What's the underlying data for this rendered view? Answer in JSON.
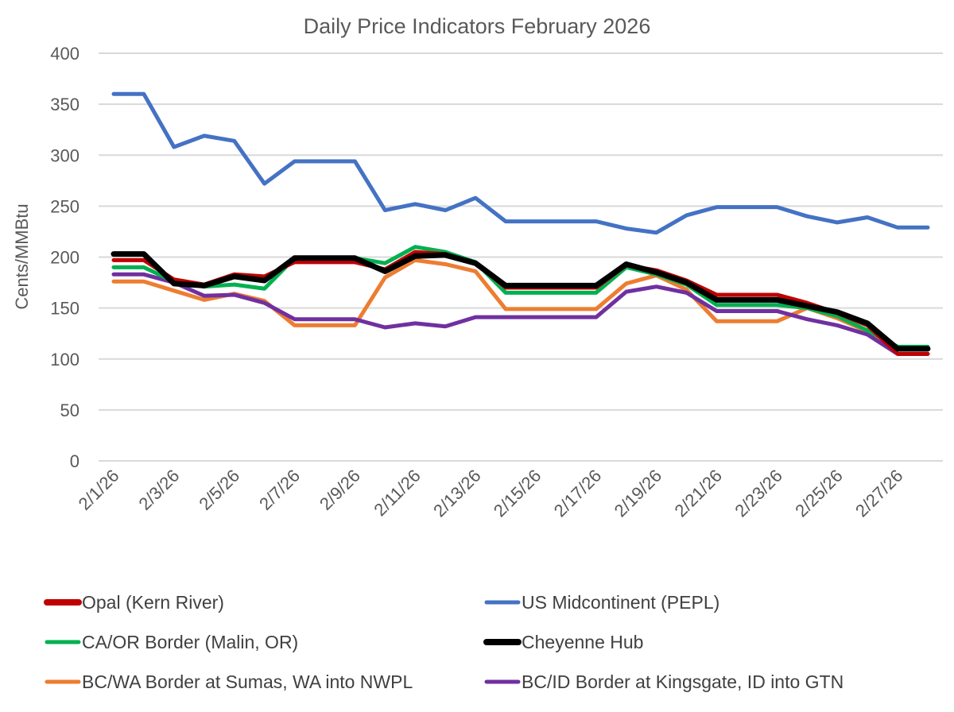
{
  "chart_data": {
    "type": "line",
    "title": "Daily Price Indicators February 2026",
    "xlabel": "",
    "ylabel": "Cents/MMBtu",
    "ylim": [
      0,
      400
    ],
    "yticks": [
      "0",
      "50",
      "100",
      "150",
      "200",
      "250",
      "300",
      "350",
      "400"
    ],
    "grid": true,
    "legend_position": "bottom",
    "x": [
      "2/1/26",
      "2/2/26",
      "2/3/26",
      "2/4/26",
      "2/5/26",
      "2/6/26",
      "2/7/26",
      "2/8/26",
      "2/9/26",
      "2/10/26",
      "2/11/26",
      "2/12/26",
      "2/13/26",
      "2/14/26",
      "2/15/26",
      "2/16/26",
      "2/17/26",
      "2/18/26",
      "2/19/26",
      "2/20/26",
      "2/21/26",
      "2/22/26",
      "2/23/26",
      "2/24/26",
      "2/25/26",
      "2/26/26",
      "2/27/26",
      "2/28/26"
    ],
    "xtick_labels": [
      "2/1/26",
      "2/3/26",
      "2/5/26",
      "2/7/26",
      "2/9/26",
      "2/11/26",
      "2/13/26",
      "2/15/26",
      "2/17/26",
      "2/19/26",
      "2/21/26",
      "2/23/26",
      "2/25/26",
      "2/27/26"
    ],
    "series": [
      {
        "name": "Opal (Kern River)",
        "color": "#C00000",
        "values": [
          197,
          197,
          178,
          173,
          183,
          181,
          195,
          195,
          195,
          188,
          205,
          203,
          194,
          170,
          170,
          170,
          170,
          192,
          187,
          177,
          163,
          163,
          163,
          155,
          145,
          133,
          105,
          105
        ]
      },
      {
        "name": "US Midcontinent (PEPL)",
        "color": "#4472C4",
        "values": [
          360,
          360,
          308,
          319,
          314,
          272,
          294,
          294,
          294,
          246,
          252,
          246,
          258,
          235,
          235,
          235,
          235,
          228,
          224,
          241,
          249,
          249,
          249,
          240,
          234,
          239,
          229,
          229
        ]
      },
      {
        "name": "CA/OR Border (Malin, OR)",
        "color": "#00B050",
        "values": [
          190,
          190,
          176,
          171,
          173,
          169,
          199,
          199,
          199,
          194,
          210,
          205,
          195,
          165,
          165,
          165,
          165,
          190,
          183,
          173,
          153,
          153,
          153,
          150,
          142,
          128,
          112,
          112
        ]
      },
      {
        "name": "Cheyenne Hub",
        "color": "#000000",
        "values": [
          203,
          203,
          174,
          172,
          181,
          177,
          199,
          199,
          199,
          186,
          201,
          202,
          194,
          172,
          172,
          172,
          172,
          193,
          185,
          175,
          158,
          158,
          158,
          152,
          146,
          135,
          110,
          110
        ]
      },
      {
        "name": "BC/WA Border at Sumas, WA into NWPL",
        "color": "#ED7D31",
        "values": [
          176,
          176,
          167,
          158,
          164,
          157,
          133,
          133,
          133,
          180,
          197,
          193,
          186,
          149,
          149,
          149,
          149,
          174,
          182,
          168,
          137,
          137,
          137,
          150,
          140,
          127,
          110,
          110
        ]
      },
      {
        "name": "BC/ID Border at Kingsgate, ID into GTN",
        "color": "#7030A0",
        "values": [
          183,
          183,
          175,
          162,
          163,
          155,
          139,
          139,
          139,
          131,
          135,
          132,
          141,
          141,
          141,
          141,
          141,
          166,
          171,
          165,
          147,
          147,
          147,
          139,
          133,
          124,
          105,
          105
        ]
      }
    ]
  }
}
